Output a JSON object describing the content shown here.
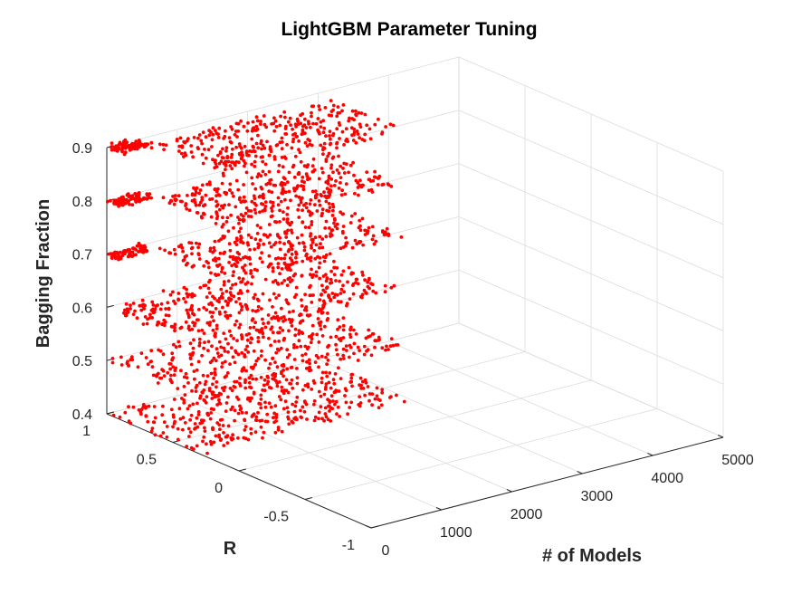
{
  "chart_data": {
    "type": "scatter",
    "title": "LightGBM Parameter Tuning",
    "xlabel": "# of Models",
    "ylabel": "R",
    "zlabel": "Bagging Fraction",
    "xlim": [
      0,
      5000
    ],
    "ylim": [
      -1,
      1
    ],
    "zlim": [
      0.4,
      0.9
    ],
    "x_ticks": [
      "0",
      "1000",
      "2000",
      "3000",
      "4000",
      "5000"
    ],
    "y_ticks": [
      "-1",
      "-0.5",
      "0",
      "0.5",
      "1"
    ],
    "z_ticks": [
      "0.4",
      "0.5",
      "0.6",
      "0.7",
      "0.8",
      "0.9"
    ],
    "grid": true,
    "marker_color": "#ff0000",
    "series": [
      {
        "clusters": [
          {
            "z": 0.9,
            "x": [
              0,
              500
            ],
            "y": [
              0.9,
              1.0
            ],
            "n": 90
          },
          {
            "z": 0.9,
            "x": [
              500,
              3000
            ],
            "y": [
              0.35,
              0.9
            ],
            "n": 330
          },
          {
            "z": 0.8,
            "x": [
              0,
              500
            ],
            "y": [
              0.9,
              1.0
            ],
            "n": 90
          },
          {
            "z": 0.8,
            "x": [
              500,
              3000
            ],
            "y": [
              0.35,
              0.9
            ],
            "n": 330
          },
          {
            "z": 0.7,
            "x": [
              0,
              500
            ],
            "y": [
              0.9,
              1.0
            ],
            "n": 70
          },
          {
            "z": 0.7,
            "x": [
              500,
              3000
            ],
            "y": [
              0.35,
              0.9
            ],
            "n": 300
          },
          {
            "z": 0.6,
            "x": [
              0,
              3000
            ],
            "y": [
              0.35,
              1.0
            ],
            "n": 380
          },
          {
            "z": 0.5,
            "x": [
              0,
              3000
            ],
            "y": [
              0.3,
              1.0
            ],
            "n": 380
          },
          {
            "z": 0.4,
            "x": [
              0,
              3000
            ],
            "y": [
              0.3,
              1.0
            ],
            "n": 380
          }
        ]
      }
    ]
  }
}
